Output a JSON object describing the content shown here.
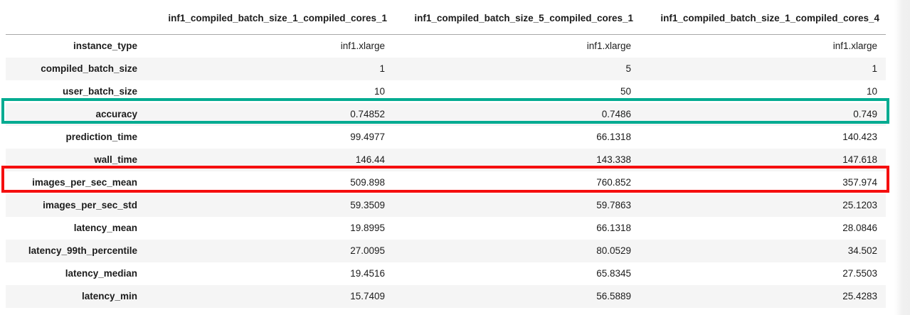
{
  "table": {
    "columns": [
      "inf1_compiled_batch_size_1_compiled_cores_1",
      "inf1_compiled_batch_size_5_compiled_cores_1",
      "inf1_compiled_batch_size_1_compiled_cores_4"
    ],
    "rows": [
      {
        "label": "instance_type",
        "values": [
          "inf1.xlarge",
          "inf1.xlarge",
          "inf1.xlarge"
        ]
      },
      {
        "label": "compiled_batch_size",
        "values": [
          "1",
          "5",
          "1"
        ]
      },
      {
        "label": "user_batch_size",
        "values": [
          "10",
          "50",
          "10"
        ]
      },
      {
        "label": "accuracy",
        "values": [
          "0.74852",
          "0.7486",
          "0.749"
        ],
        "highlight": "teal-box"
      },
      {
        "label": "prediction_time",
        "values": [
          "99.4977",
          "66.1318",
          "140.423"
        ]
      },
      {
        "label": "wall_time",
        "values": [
          "146.44",
          "143.338",
          "147.618"
        ]
      },
      {
        "label": "images_per_sec_mean",
        "values": [
          "509.898",
          "760.852",
          "357.974"
        ],
        "highlight": "red-box"
      },
      {
        "label": "images_per_sec_std",
        "values": [
          "59.3509",
          "59.7863",
          "25.1203"
        ]
      },
      {
        "label": "latency_mean",
        "values": [
          "19.8995",
          "66.1318",
          "28.0846"
        ]
      },
      {
        "label": "latency_99th_percentile",
        "values": [
          "27.0095",
          "80.0529",
          "34.502"
        ]
      },
      {
        "label": "latency_median",
        "values": [
          "19.4516",
          "65.8345",
          "27.5503"
        ]
      },
      {
        "label": "latency_min",
        "values": [
          "15.7409",
          "56.5889",
          "25.4283"
        ]
      }
    ]
  },
  "highlights": {
    "accuracy_box_color": "#00ab91",
    "images_per_sec_mean_box_color": "#f50f0f"
  }
}
